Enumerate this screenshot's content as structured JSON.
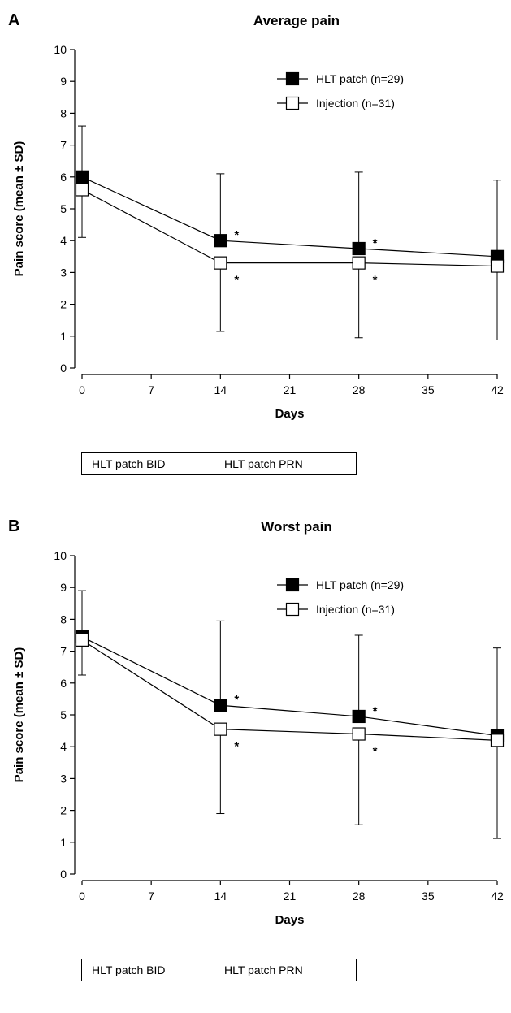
{
  "chart_data": [
    {
      "panel": "A",
      "type": "line",
      "title": "Average pain",
      "xlabel": "Days",
      "ylabel": "Pain score (mean ± SD)",
      "xticks": [
        0,
        7,
        14,
        21,
        28,
        35,
        42
      ],
      "yticks": [
        0,
        1,
        2,
        3,
        4,
        5,
        6,
        7,
        8,
        9,
        10
      ],
      "xlim": [
        0,
        42
      ],
      "ylim": [
        0,
        10
      ],
      "grid": false,
      "legend_position": "top-right",
      "x": [
        0,
        14,
        28,
        42
      ],
      "series": [
        {
          "name": "HLT patch (n=29)",
          "marker": "filled-square",
          "color": "#000000",
          "values": [
            6.0,
            4.0,
            3.75,
            3.5
          ],
          "sd_upper": [
            7.6,
            6.1,
            6.15,
            5.9
          ]
        },
        {
          "name": "Injection (n=31)",
          "marker": "open-square",
          "color": "#ffffff",
          "values": [
            5.6,
            3.3,
            3.3,
            3.2
          ],
          "sd_lower": [
            4.1,
            1.15,
            0.95,
            0.88
          ]
        }
      ],
      "significance_marker": "*",
      "phases": [
        "HLT patch BID",
        "HLT patch PRN"
      ]
    },
    {
      "panel": "B",
      "type": "line",
      "title": "Worst pain",
      "xlabel": "Days",
      "ylabel": "Pain score (mean ± SD)",
      "xticks": [
        0,
        7,
        14,
        21,
        28,
        35,
        42
      ],
      "yticks": [
        0,
        1,
        2,
        3,
        4,
        5,
        6,
        7,
        8,
        9,
        10
      ],
      "xlim": [
        0,
        42
      ],
      "ylim": [
        0,
        10
      ],
      "grid": false,
      "legend_position": "top-right",
      "x": [
        0,
        14,
        28,
        42
      ],
      "series": [
        {
          "name": "HLT patch (n=29)",
          "marker": "filled-square",
          "color": "#000000",
          "values": [
            7.45,
            5.3,
            4.95,
            4.35
          ],
          "sd_upper": [
            8.9,
            7.95,
            7.5,
            7.1
          ]
        },
        {
          "name": "Injection (n=31)",
          "marker": "open-square",
          "color": "#ffffff",
          "values": [
            7.35,
            4.55,
            4.4,
            4.2
          ],
          "sd_lower": [
            6.25,
            1.9,
            1.55,
            1.12
          ]
        }
      ],
      "significance_marker": "*",
      "phases": [
        "HLT patch BID",
        "HLT patch PRN"
      ]
    }
  ],
  "panels": [
    {
      "letter": "A"
    },
    {
      "letter": "B"
    }
  ]
}
